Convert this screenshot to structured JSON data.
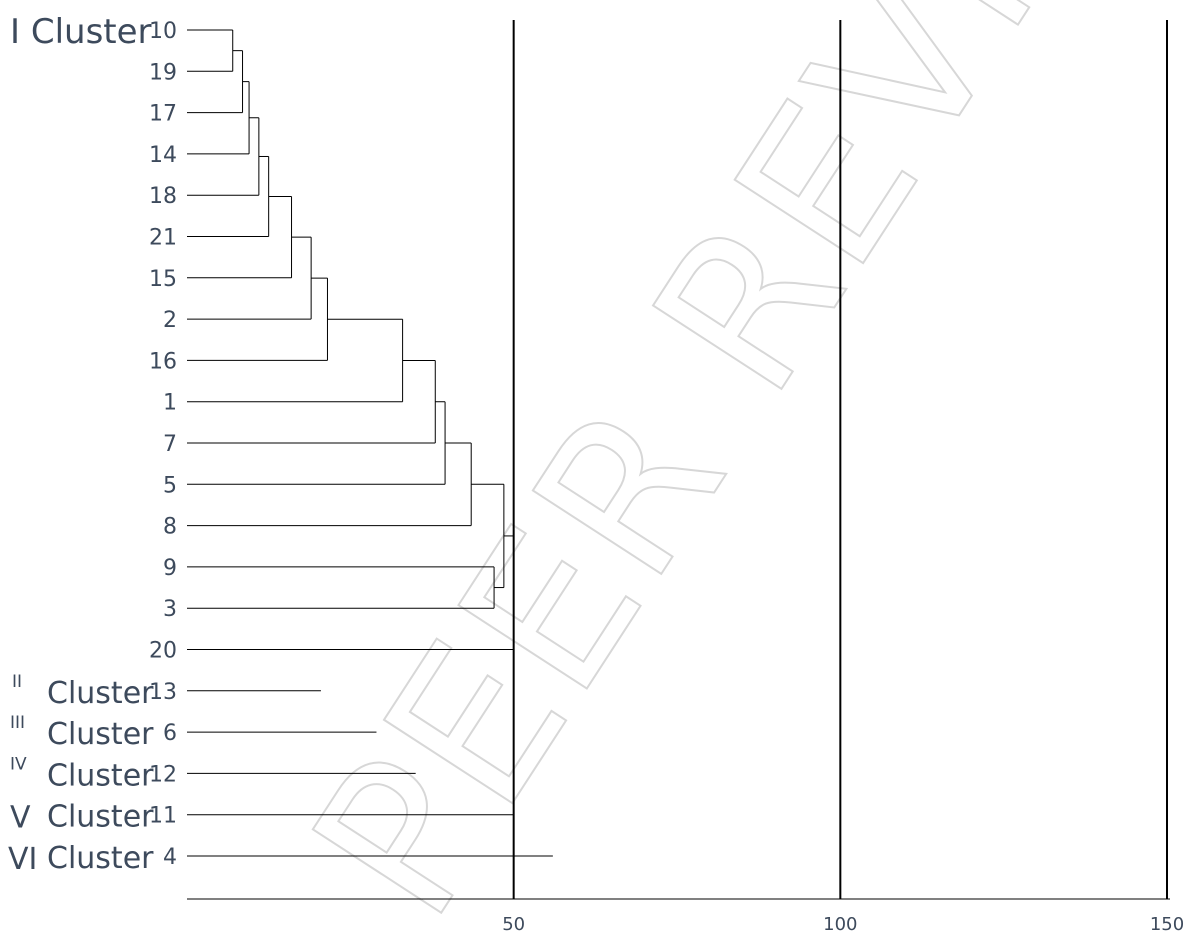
{
  "watermark": "PEER REVIEW",
  "chart_data": {
    "type": "dendrogram",
    "xlim": [
      0,
      150
    ],
    "x_ticks": [
      50,
      100,
      150
    ],
    "reference_lines": [
      50,
      100,
      150
    ],
    "leaves": [
      "10",
      "19",
      "17",
      "14",
      "18",
      "21",
      "15",
      "2",
      "16",
      "1",
      "7",
      "5",
      "8",
      "9",
      "3",
      "20",
      "13",
      "6",
      "12",
      "11",
      "4"
    ],
    "merges": [
      {
        "join": [
          "10",
          "19"
        ],
        "height": 7
      },
      {
        "join": [
          "10-19",
          "17"
        ],
        "height": 8.5
      },
      {
        "join": [
          "10-17",
          "14"
        ],
        "height": 9.5
      },
      {
        "join": [
          "10-14",
          "18"
        ],
        "height": 11
      },
      {
        "join": [
          "10-18",
          "21"
        ],
        "height": 12.5
      },
      {
        "join": [
          "10-21",
          "15"
        ],
        "height": 16
      },
      {
        "join": [
          "10-15",
          "2"
        ],
        "height": 19
      },
      {
        "join": [
          "10-2",
          "16"
        ],
        "height": 21.5
      },
      {
        "join": [
          "10-16",
          "1"
        ],
        "height": 33
      },
      {
        "join": [
          "10-1",
          "7"
        ],
        "height": 38
      },
      {
        "join": [
          "10-7",
          "5"
        ],
        "height": 39.5
      },
      {
        "join": [
          "10-5",
          "8"
        ],
        "height": 43.5
      },
      {
        "join": [
          "9",
          "3"
        ],
        "height": 47
      },
      {
        "join": [
          "10-8",
          "9-3"
        ],
        "height": 48.5
      },
      {
        "join": [
          "10-3",
          "20"
        ],
        "height": 50
      }
    ],
    "singleton_stems": [
      {
        "leaf": "13",
        "length": 20.5
      },
      {
        "leaf": "6",
        "length": 29
      },
      {
        "leaf": "12",
        "length": 35
      },
      {
        "leaf": "11",
        "length": 50
      },
      {
        "leaf": "4",
        "length": 56
      }
    ],
    "clusters": [
      {
        "roman": "I",
        "word": "Cluster",
        "members": [
          "10",
          "19",
          "17",
          "14",
          "18",
          "21",
          "15",
          "2",
          "16",
          "1",
          "7",
          "5",
          "8",
          "9",
          "3",
          "20"
        ]
      },
      {
        "roman": "II",
        "word": "Cluster",
        "members": [
          "13"
        ]
      },
      {
        "roman": "III",
        "word": "Cluster",
        "members": [
          "6"
        ]
      },
      {
        "roman": "IV",
        "word": "Cluster",
        "members": [
          "12"
        ]
      },
      {
        "roman": "V",
        "word": "Cluster",
        "members": [
          "11"
        ]
      },
      {
        "roman": "VI",
        "word": "Cluster",
        "members": [
          "4"
        ]
      }
    ]
  }
}
